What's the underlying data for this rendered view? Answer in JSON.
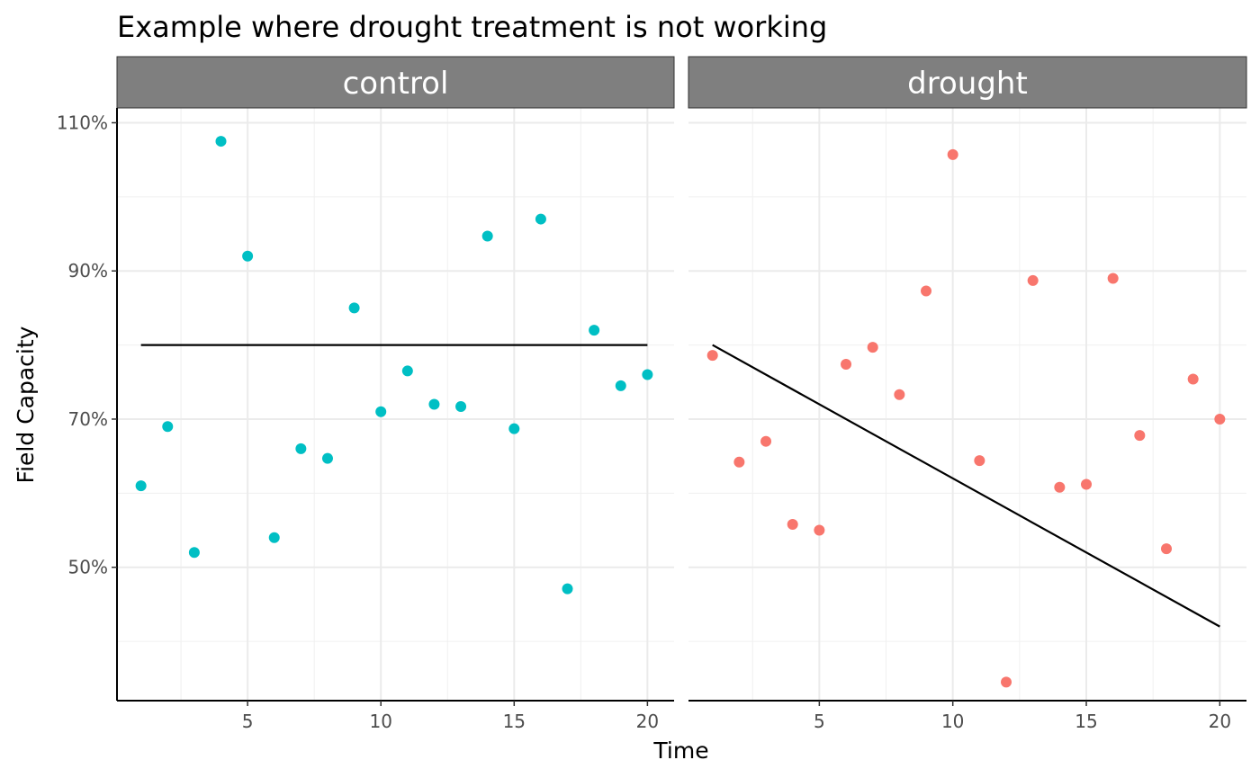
{
  "chart_data": {
    "type": "scatter",
    "title": "Example where drought treatment is not working",
    "xlabel": "Time",
    "ylabel": "Field Capacity",
    "x_ticks": [
      5,
      10,
      15,
      20
    ],
    "y_ticks": [
      "50%",
      "70%",
      "90%",
      "110%"
    ],
    "xlim": [
      0.1,
      21.0
    ],
    "ylim": [
      0.32,
      1.12
    ],
    "grid": true,
    "facets": [
      {
        "label": "control",
        "color": "#00BFC4",
        "points": [
          {
            "x": 1,
            "y": 0.61
          },
          {
            "x": 2,
            "y": 0.69
          },
          {
            "x": 3,
            "y": 0.52
          },
          {
            "x": 4,
            "y": 1.075
          },
          {
            "x": 5,
            "y": 0.92
          },
          {
            "x": 6,
            "y": 0.54
          },
          {
            "x": 7,
            "y": 0.66
          },
          {
            "x": 8,
            "y": 0.647
          },
          {
            "x": 9,
            "y": 0.85
          },
          {
            "x": 10,
            "y": 0.71
          },
          {
            "x": 11,
            "y": 0.765
          },
          {
            "x": 12,
            "y": 0.72
          },
          {
            "x": 13,
            "y": 0.717
          },
          {
            "x": 14,
            "y": 0.947
          },
          {
            "x": 15,
            "y": 0.687
          },
          {
            "x": 16,
            "y": 0.97
          },
          {
            "x": 17,
            "y": 0.471
          },
          {
            "x": 18,
            "y": 0.82
          },
          {
            "x": 19,
            "y": 0.745
          },
          {
            "x": 20,
            "y": 0.76
          }
        ],
        "fit_line": {
          "x": [
            1,
            20
          ],
          "y": [
            0.8,
            0.8
          ]
        }
      },
      {
        "label": "drought",
        "color": "#F8766D",
        "points": [
          {
            "x": 1,
            "y": 0.786
          },
          {
            "x": 2,
            "y": 0.642
          },
          {
            "x": 3,
            "y": 0.67
          },
          {
            "x": 4,
            "y": 0.558
          },
          {
            "x": 5,
            "y": 0.55
          },
          {
            "x": 6,
            "y": 0.774
          },
          {
            "x": 7,
            "y": 0.797
          },
          {
            "x": 8,
            "y": 0.733
          },
          {
            "x": 9,
            "y": 0.873
          },
          {
            "x": 10,
            "y": 1.057
          },
          {
            "x": 11,
            "y": 0.644
          },
          {
            "x": 12,
            "y": 0.345
          },
          {
            "x": 13,
            "y": 0.887
          },
          {
            "x": 14,
            "y": 0.608
          },
          {
            "x": 15,
            "y": 0.612
          },
          {
            "x": 16,
            "y": 0.89
          },
          {
            "x": 17,
            "y": 0.678
          },
          {
            "x": 18,
            "y": 0.525
          },
          {
            "x": 19,
            "y": 0.754
          },
          {
            "x": 20,
            "y": 0.7
          }
        ],
        "fit_line": {
          "x": [
            1,
            20
          ],
          "y": [
            0.8,
            0.42
          ]
        }
      }
    ]
  }
}
